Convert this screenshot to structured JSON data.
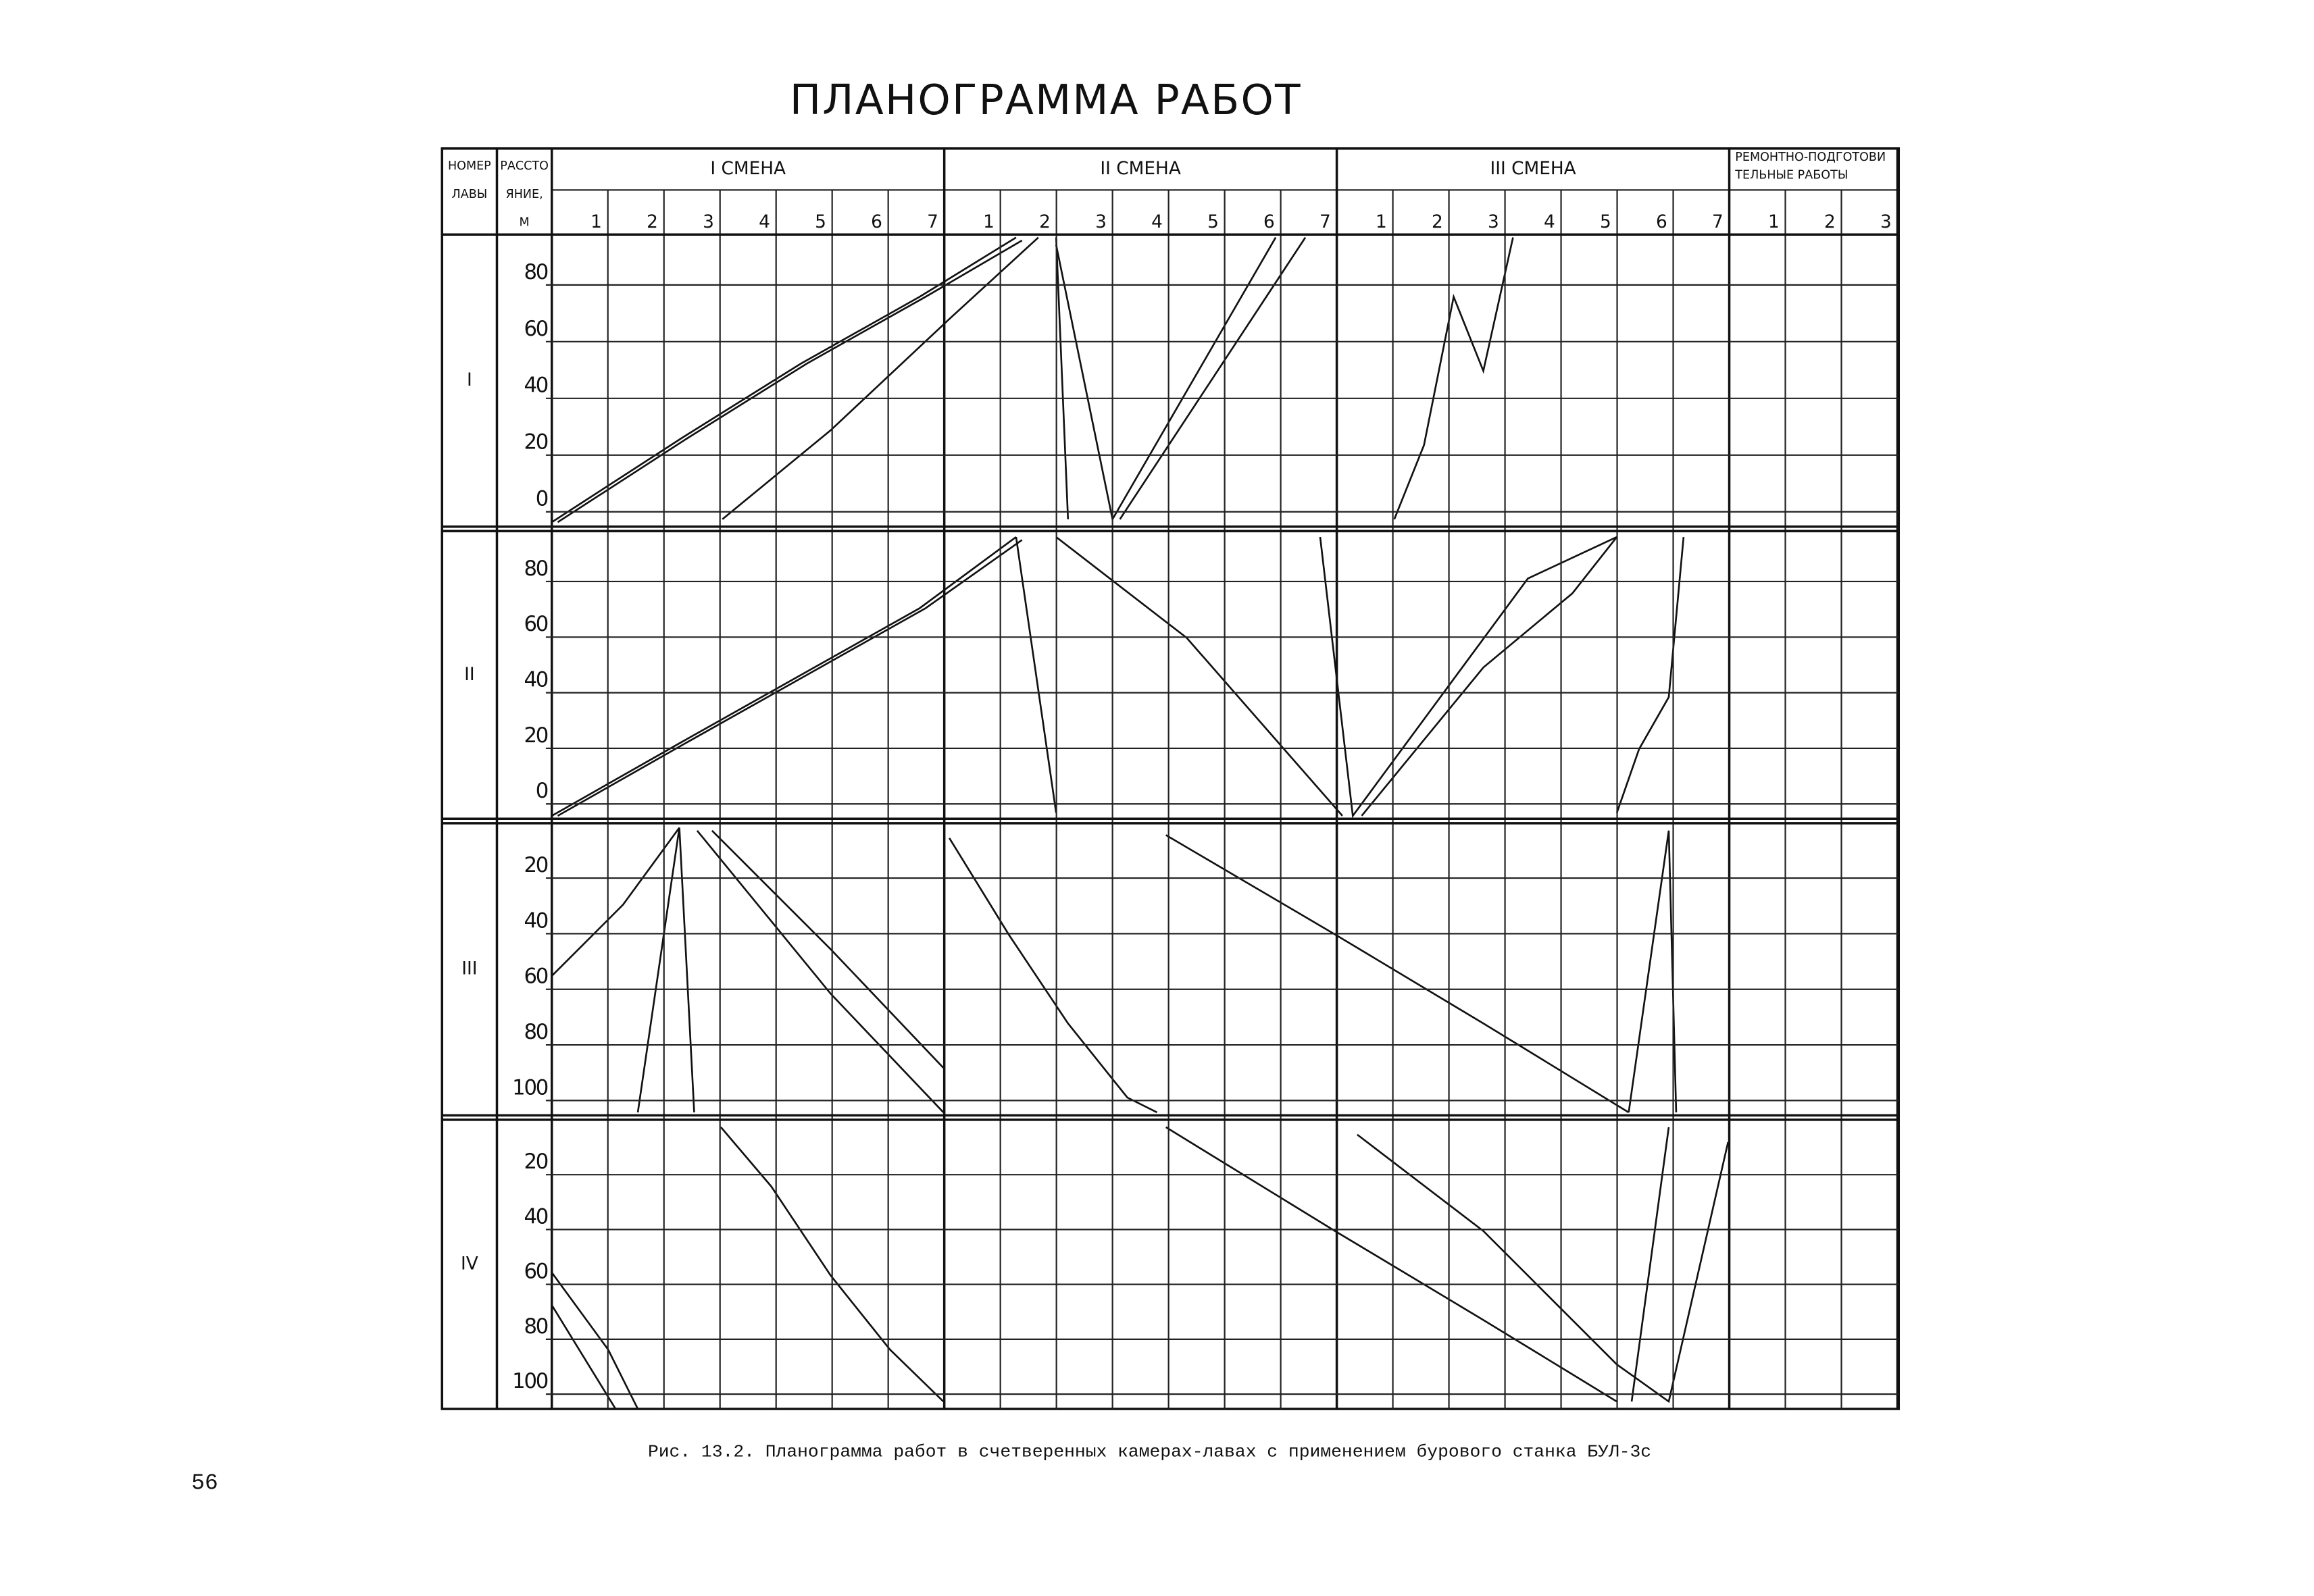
{
  "header": {
    "title": "ПЛАНОГРАММА   РАБОТ"
  },
  "table": {
    "col_headers": [
      [
        "НОМЕР",
        "ЛАВЫ"
      ],
      [
        "РАССТО",
        "ЯНИЕ,",
        "М"
      ]
    ],
    "shifts": [
      [
        "I СМЕНА"
      ],
      [
        "II СМЕНА"
      ],
      [
        "III СМЕНА"
      ],
      [
        "РЕМОНТНО-ПОДГОТОВИ",
        "ТЕЛЬНЫЕ РАБОТЫ"
      ]
    ],
    "hours": [
      [
        1,
        2,
        3,
        4,
        5,
        6,
        7
      ],
      [
        1,
        2,
        3,
        4,
        5,
        6,
        7
      ],
      [
        1,
        2,
        3,
        4,
        5,
        6,
        7
      ],
      [
        1,
        2,
        3
      ]
    ],
    "rows": [
      {
        "label": "I",
        "ticks": [
          80,
          60,
          40,
          20,
          0
        ]
      },
      {
        "label": "II",
        "ticks": [
          80,
          60,
          40,
          20,
          0
        ]
      },
      {
        "label": "III",
        "ticks": [
          20,
          40,
          60,
          80,
          100
        ]
      },
      {
        "label": "IV",
        "ticks": [
          20,
          40,
          60,
          80,
          100
        ]
      }
    ]
  },
  "caption": "Рис. 13.2. Планограмма работ в счетверенных камерах-лавах с применением бурового станка БУЛ-3с",
  "page_number": "56"
}
